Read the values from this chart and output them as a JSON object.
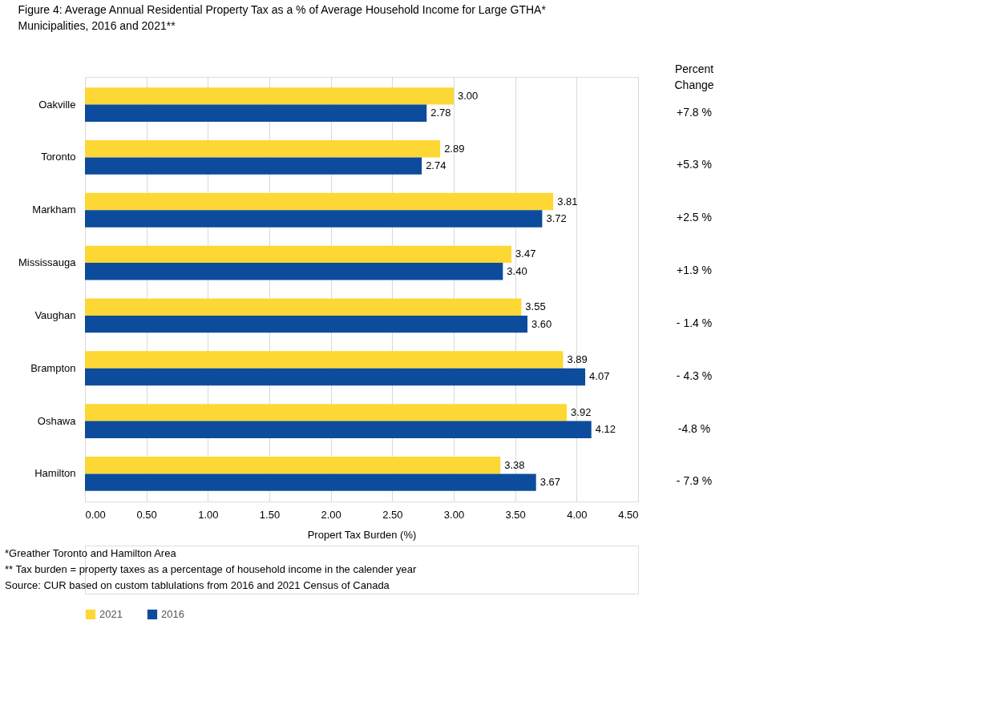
{
  "chart_data": {
    "type": "bar",
    "orientation": "horizontal",
    "title": "Figure 4: Average Annual Residential Property Tax as a % of Average Household Income for Large GTHA* Municipalities, 2016 and 2021**",
    "categories": [
      "Oakville",
      "Toronto",
      "Markham",
      "Mississauga",
      "Vaughan",
      "Brampton",
      "Oshawa",
      "Hamilton"
    ],
    "series": [
      {
        "name": "2021",
        "color": "#fdd835",
        "values": [
          3.0,
          2.89,
          3.81,
          3.47,
          3.55,
          3.89,
          3.92,
          3.38
        ],
        "value_labels": [
          "3.00",
          "2.89",
          "3.81",
          "3.47",
          "3.55",
          "3.89",
          "3.92",
          "3.38"
        ]
      },
      {
        "name": "2016",
        "color": "#0d4c9c",
        "values": [
          2.78,
          2.74,
          3.72,
          3.4,
          3.6,
          4.07,
          4.12,
          3.67
        ],
        "value_labels": [
          "2.78",
          "2.74",
          "3.72",
          "3.40",
          "3.60",
          "4.07",
          "4.12",
          "3.67"
        ]
      }
    ],
    "xlim": [
      0,
      4.5
    ],
    "xticks": [
      {
        "value": 0,
        "label": "0.00"
      },
      {
        "value": 0.5,
        "label": "0.50"
      },
      {
        "value": 1,
        "label": "1.00"
      },
      {
        "value": 1.5,
        "label": "1.50"
      },
      {
        "value": 2,
        "label": "2.00"
      },
      {
        "value": 2.5,
        "label": "2.50"
      },
      {
        "value": 3,
        "label": "3.00"
      },
      {
        "value": 3.5,
        "label": "3.50"
      },
      {
        "value": 4,
        "label": "4.00"
      },
      {
        "value": 4.5,
        "label": "4.50"
      }
    ],
    "xlabel": "Propert Tax Burden (%)",
    "grid": "x",
    "legend": "bottom",
    "annotations": [
      "Percent Change",
      "+7.8 %",
      "+5.3 %",
      "+2.5 %",
      "+1.9 %",
      "- 1.4 %",
      "- 4.3 %",
      "-4.8 %",
      "- 7.9 %",
      "*Greather Toronto and Hamilton Area",
      "** Tax burden = property taxes as a percentage of household income in the calender year",
      "Source: CUR based on custom tablulations from 2016 and 2021 Census of Canada"
    ]
  }
}
